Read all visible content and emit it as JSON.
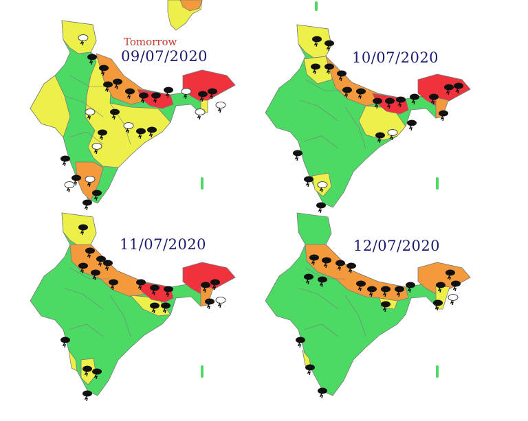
{
  "colors": {
    "green": "#4cd964",
    "yellow": "#eef04a",
    "orange": "#f39a3c",
    "red": "#f0323c",
    "border": "#7a7a7a"
  },
  "icons": [
    "thunderstorm-icon",
    "lightning-icon"
  ],
  "panels": [
    {
      "tag": "Tomorrow",
      "date": "09/07/2020"
    },
    {
      "tag": "",
      "date": "10/07/2020"
    },
    {
      "tag": "",
      "date": "11/07/2020"
    },
    {
      "tag": "",
      "date": "12/07/2020"
    }
  ]
}
